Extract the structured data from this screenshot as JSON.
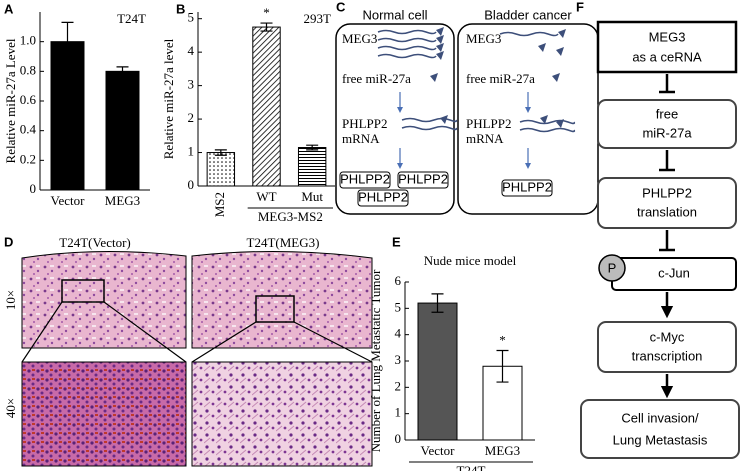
{
  "panel_labels": [
    "A",
    "B",
    "C",
    "D",
    "E",
    "F"
  ],
  "chart_data": [
    {
      "type": "bar",
      "annotation": "T24T",
      "ylabel": "Relative miR-27a Level",
      "categories": [
        "Vector",
        "MEG3"
      ],
      "values": [
        1.0,
        0.8
      ],
      "errors": [
        0.13,
        0.03
      ],
      "color": "#000000",
      "ylim": [
        0,
        1.2
      ],
      "yticks": [
        0,
        0.2,
        0.4,
        0.6,
        0.8,
        {
          "value": 1.0,
          "label": "1.0"
        }
      ]
    },
    {
      "type": "bar",
      "annotation": "293T",
      "ylabel": "Relative miR-27a level",
      "categories": [
        "MS2",
        "WT",
        "Mut"
      ],
      "values": [
        1.0,
        4.75,
        1.15
      ],
      "errors": [
        0.08,
        0.12,
        0.07
      ],
      "fills": [
        "dotted",
        "hatched",
        "striped"
      ],
      "significance": [
        null,
        "*",
        null
      ],
      "group_label": "MEG3-MS2",
      "ylim": [
        0,
        5.2
      ],
      "yticks": [
        0,
        1,
        2,
        3,
        4,
        5
      ]
    },
    {
      "type": "bar",
      "title": "Nude mice model",
      "ylabel": "Number of Lung Metastatic Tumor",
      "categories": [
        "Vector",
        "MEG3"
      ],
      "values": [
        5.2,
        2.8
      ],
      "errors": [
        0.35,
        0.6
      ],
      "colors": [
        "#555555",
        "#ffffff"
      ],
      "significance": [
        null,
        "*"
      ],
      "group_label": "T24T",
      "ylim": [
        0,
        6
      ],
      "yticks": [
        0,
        1,
        2,
        3,
        4,
        5,
        6
      ]
    }
  ],
  "diagram_c": {
    "panels": [
      {
        "title": "Normal cell",
        "boxes": [
          "PHLPP2",
          "PHLPP2",
          "PHLPP2"
        ]
      },
      {
        "title": "Bladder cancer",
        "boxes": [
          "PHLPP2"
        ]
      }
    ],
    "labels": {
      "meg3": "MEG3",
      "mir": "free miR-27a",
      "mrna": [
        "PHLPP2",
        "mRNA"
      ]
    }
  },
  "panel_d": {
    "columns": [
      "T24T(Vector)",
      "T24T(MEG3)"
    ],
    "rows": [
      "10×",
      "40×"
    ]
  },
  "diagram_f": {
    "nodes": [
      [
        "MEG3",
        "as a ceRNA"
      ],
      [
        "free",
        "miR-27a"
      ],
      [
        "PHLPP2",
        "translation"
      ],
      [
        "c-Jun"
      ],
      [
        "c-Myc",
        "transcription"
      ],
      [
        "Cell invasion/",
        "Lung Metastasis"
      ]
    ],
    "phospho": "P"
  }
}
